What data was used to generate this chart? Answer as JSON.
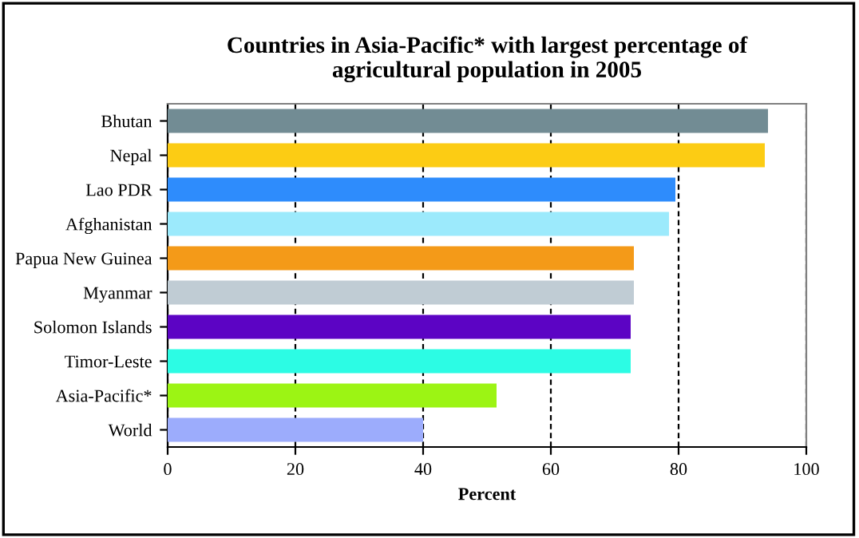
{
  "chart_data": {
    "type": "bar",
    "orientation": "horizontal",
    "title": "Countries in Asia-Pacific* with largest percentage of\nagricultural population in 2005",
    "xlabel": "Percent",
    "categories": [
      "Bhutan",
      "Nepal",
      "Lao PDR",
      "Afghanistan",
      "Papua New Guinea",
      "Myanmar",
      "Solomon Islands",
      "Timor-Leste",
      "Asia-Pacific*",
      "World"
    ],
    "values": [
      94,
      93.5,
      79.5,
      78.5,
      73,
      73,
      72.5,
      72.5,
      51.5,
      40
    ],
    "colors": [
      "#728c94",
      "#fccc14",
      "#2e8cfc",
      "#9ceafc",
      "#f49a18",
      "#c0ccd4",
      "#5c04c4",
      "#2cfce4",
      "#9cf414",
      "#9cacfc"
    ],
    "xlim": [
      0,
      100
    ],
    "xticks": [
      0,
      20,
      40,
      60,
      80,
      100
    ],
    "grid": "x",
    "line_style": "dashed"
  }
}
